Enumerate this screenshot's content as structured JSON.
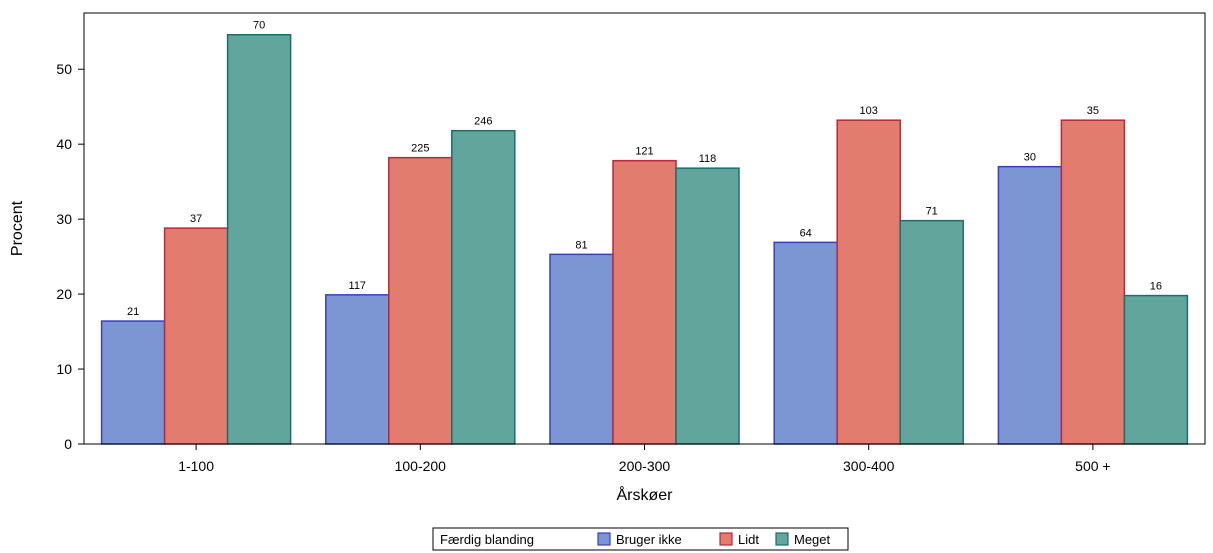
{
  "chart_data": {
    "type": "bar",
    "title": "",
    "xlabel": "Årskøer",
    "ylabel": "Procent",
    "categories": [
      "1-100",
      "100-200",
      "200-300",
      "300-400",
      "500 +"
    ],
    "ylim": [
      0,
      57.5
    ],
    "yticks": [
      0,
      10,
      20,
      30,
      40,
      50
    ],
    "grid": false,
    "legend_position": "bottom-center",
    "legend_title": "Færdig blanding",
    "series": [
      {
        "name": "Bruger ikke",
        "fill": "#7b96d2",
        "stroke": "#3a3fc0",
        "values": [
          16.4,
          19.9,
          25.3,
          26.9,
          37.0
        ],
        "labels": [
          "21",
          "117",
          "81",
          "64",
          "30"
        ]
      },
      {
        "name": "Lidt",
        "fill": "#e17c6e",
        "stroke": "#b8283e",
        "values": [
          28.8,
          38.2,
          37.8,
          43.2,
          43.2
        ],
        "labels": [
          "37",
          "225",
          "121",
          "103",
          "35"
        ]
      },
      {
        "name": "Meget",
        "fill": "#61a59d",
        "stroke": "#1e6e68",
        "values": [
          54.6,
          41.8,
          36.8,
          29.8,
          19.8
        ],
        "labels": [
          "70",
          "246",
          "118",
          "71",
          "16"
        ]
      }
    ]
  }
}
